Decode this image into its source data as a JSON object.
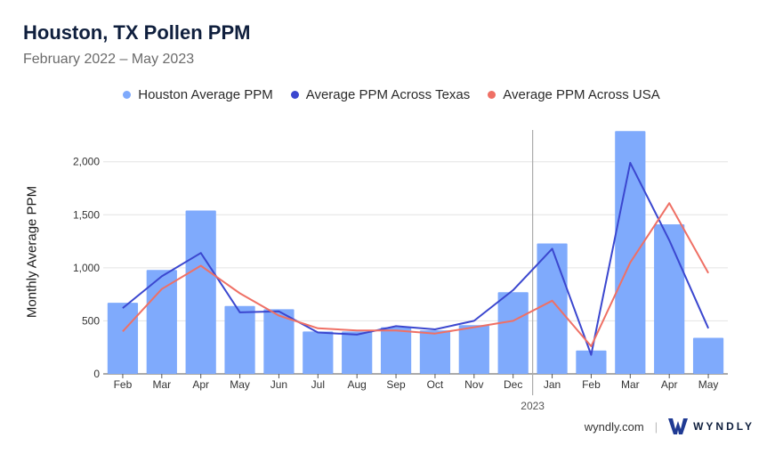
{
  "title": "Houston, TX Pollen PPM",
  "subtitle": "February 2022 – May 2023",
  "footer": {
    "site": "wyndly.com",
    "brand": "WYNDLY"
  },
  "colors": {
    "bars": "#7faafc",
    "texas": "#3b47cf",
    "usa": "#ef7065"
  },
  "chart_data": {
    "type": "bar",
    "title": "Houston, TX Pollen PPM",
    "subtitle": "February 2022 – May 2023",
    "xlabel": "",
    "ylabel": "Monthly Average PPM",
    "ylim": [
      0,
      2300
    ],
    "yticks": [
      0,
      500,
      1000,
      1500,
      2000
    ],
    "ytick_labels": [
      "0",
      "500",
      "1,000",
      "1,500",
      "2,000"
    ],
    "categories": [
      "Feb",
      "Mar",
      "Apr",
      "May",
      "Jun",
      "Jul",
      "Aug",
      "Sep",
      "Oct",
      "Nov",
      "Dec",
      "Jan",
      "Feb",
      "Mar",
      "Apr",
      "May"
    ],
    "year_marker": {
      "label": "2023",
      "before_index": 11
    },
    "grid": true,
    "legend_position": "top-center",
    "series": [
      {
        "name": "Houston Average PPM",
        "type": "bar",
        "values": [
          670,
          980,
          1540,
          640,
          610,
          400,
          400,
          440,
          410,
          460,
          770,
          1230,
          220,
          2290,
          1410,
          340
        ]
      },
      {
        "name": "Average PPM Across Texas",
        "type": "line",
        "values": [
          620,
          920,
          1140,
          580,
          590,
          390,
          370,
          450,
          420,
          500,
          790,
          1180,
          180,
          1990,
          1260,
          430
        ]
      },
      {
        "name": "Average PPM Across USA",
        "type": "line",
        "values": [
          400,
          800,
          1020,
          760,
          550,
          430,
          410,
          410,
          380,
          440,
          500,
          690,
          260,
          1050,
          1610,
          950
        ]
      }
    ]
  }
}
